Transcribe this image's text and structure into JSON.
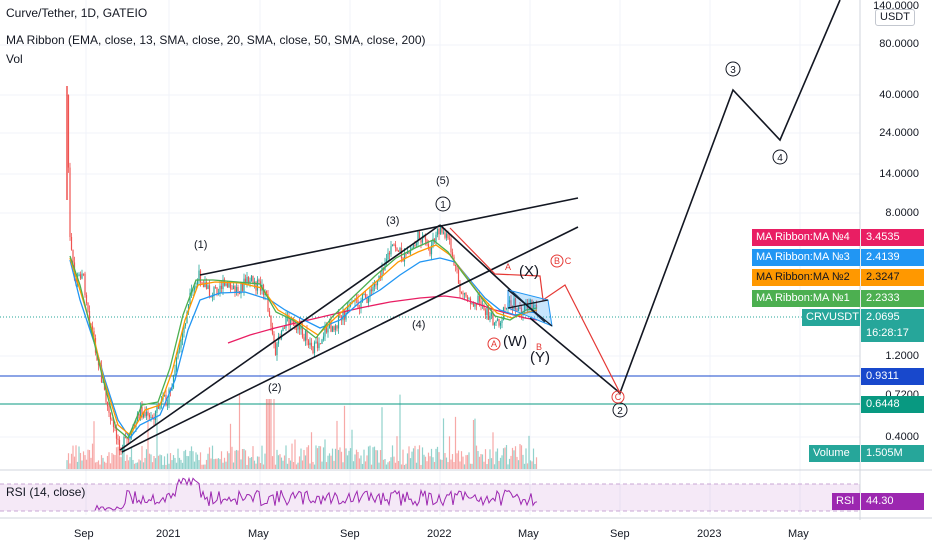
{
  "legend": {
    "symbol": "Curve/Tether, 1D, GATEIO",
    "ma_ribbon": "MA Ribbon (EMA, close, 13, SMA, close, 20, SMA, close, 50, SMA, close, 200)",
    "volume": "Vol",
    "rsi": "RSI (14, close)"
  },
  "price_axis": {
    "unit": "USDT",
    "labels": [
      "140.0000",
      "80.0000",
      "40.0000",
      "24.0000",
      "14.0000",
      "8.0000",
      "1.2000",
      "0.7200",
      "0.4000"
    ],
    "scale": "log"
  },
  "time_axis": {
    "labels": [
      "Sep",
      "2021",
      "May",
      "Sep",
      "2022",
      "May",
      "Sep",
      "2023",
      "May"
    ]
  },
  "tags": {
    "ma4": {
      "name": "MA Ribbon:MA №4",
      "value": "3.4535",
      "color": "#e91e63"
    },
    "ma3": {
      "name": "MA Ribbon:MA №3",
      "value": "2.4139",
      "color": "#2196f3"
    },
    "ma2": {
      "name": "MA Ribbon:MA №2",
      "value": "2.3247",
      "color": "#ff9800"
    },
    "ma1": {
      "name": "MA Ribbon:MA №1",
      "value": "2.2333",
      "color": "#4caf50"
    },
    "last": {
      "name": "CRVUSDT",
      "value": "2.0695",
      "countdown": "16:28:17",
      "color": "#26a69a"
    },
    "line_blue": {
      "value": "0.9311",
      "color": "#1848cc"
    },
    "line_green": {
      "value": "0.6448",
      "color": "#089981"
    },
    "volume": {
      "name": "Volume",
      "value": "1.505M",
      "color": "#26a69a"
    },
    "rsi": {
      "name": "RSI",
      "value": "44.30",
      "color": "#9c27b0"
    }
  },
  "wave_labels": {
    "w1": "(1)",
    "w2": "(2)",
    "w3": "(3)",
    "w4": "(4)",
    "w5": "(5)",
    "circ1": "1",
    "circ2": "2",
    "circ3": "3",
    "circ4": "4",
    "X": "(X)",
    "W": "(W)",
    "Y": "(Y)",
    "a_small": "A",
    "a_circ": "A",
    "b_circ": "B",
    "c_small": "C",
    "c_circ": "C",
    "b_small": "B"
  },
  "colors": {
    "bull": "#26a69a",
    "bear": "#ef5350",
    "rsi_line": "#9c27b0",
    "annotation_red": "#e53935"
  }
}
